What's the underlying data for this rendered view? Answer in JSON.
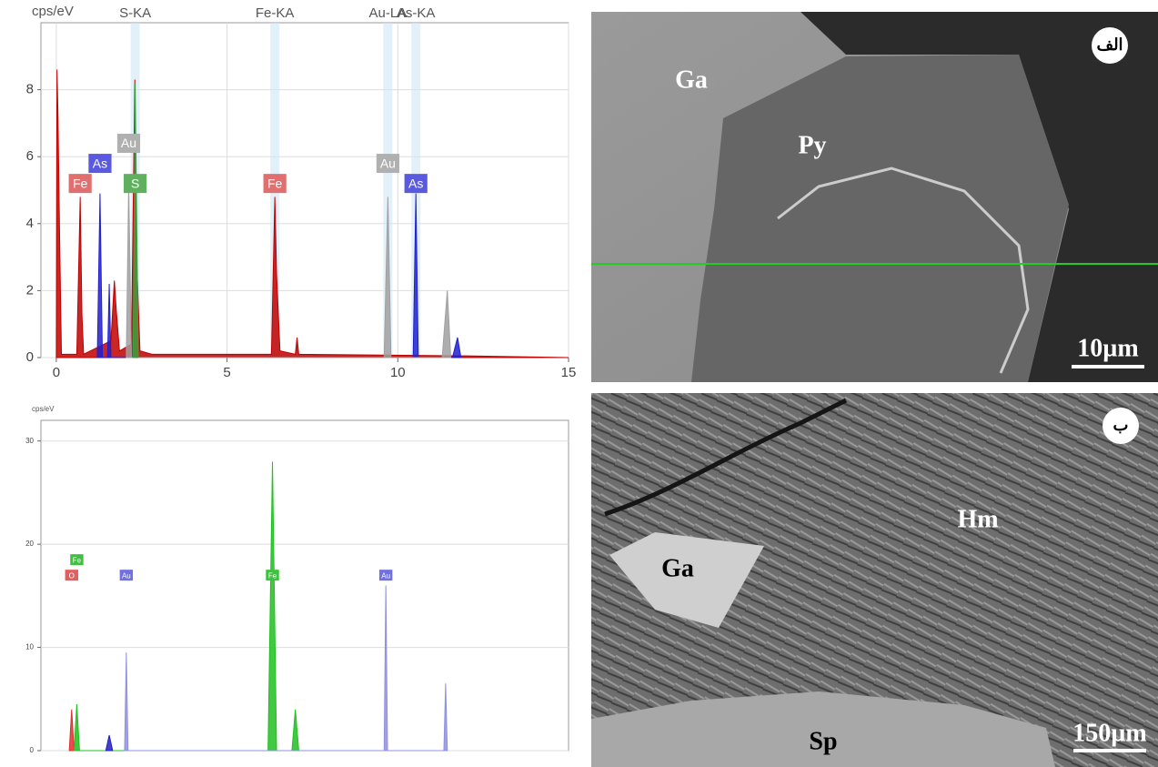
{
  "chart_data": [
    {
      "type": "spectrum",
      "ylabel": "cps/eV",
      "xlim": [
        -0.45,
        15
      ],
      "ylim": [
        0,
        10
      ],
      "xticks": [
        0,
        5,
        10,
        15
      ],
      "yticks": [
        0,
        2,
        4,
        6,
        8
      ],
      "grid": true,
      "series": [
        {
          "color": "#c00000",
          "x": [
            0,
            0.02,
            0.05,
            0.1,
            0.15,
            0.6,
            0.7,
            0.75,
            0.8,
            1.6,
            1.7,
            1.75,
            1.85,
            2.2,
            2.3,
            2.35,
            2.45,
            2.8,
            6.3,
            6.4,
            6.45,
            6.55,
            7.0,
            7.05,
            7.1,
            12,
            15
          ],
          "values": [
            0,
            8.6,
            7.2,
            3.4,
            0.1,
            0.1,
            4.8,
            1.3,
            0.1,
            0.5,
            2.3,
            1.5,
            0.2,
            0.4,
            8.3,
            3.0,
            0.2,
            0.1,
            0.1,
            4.8,
            2.5,
            0.2,
            0.1,
            0.6,
            0.1,
            0.05,
            0
          ]
        },
        {
          "color": "#2020d0",
          "x": [
            1.2,
            1.28,
            1.35,
            1.5,
            1.55,
            1.6,
            10.45,
            10.53,
            10.6,
            11.6,
            11.75,
            11.85
          ],
          "values": [
            0,
            4.9,
            0,
            0,
            2.2,
            0,
            0,
            4.9,
            0,
            0,
            0.6,
            0
          ]
        },
        {
          "color": "#a0a0a0",
          "x": [
            2.05,
            2.12,
            2.2,
            9.6,
            9.71,
            9.8,
            11.3,
            11.45,
            11.55
          ],
          "values": [
            0,
            5.2,
            0,
            0,
            4.8,
            0,
            0,
            2.0,
            0
          ]
        },
        {
          "color": "#3ca03c",
          "x": [
            2.25,
            2.31,
            2.4
          ],
          "values": [
            0,
            8.2,
            0
          ]
        }
      ],
      "peak_labels": [
        {
          "text": "S-KA",
          "x": 2.31
        },
        {
          "text": "Fe-KA",
          "x": 6.4
        },
        {
          "text": "Au-LA",
          "x": 9.71
        },
        {
          "text": "As-KA",
          "x": 10.53
        }
      ],
      "tags": [
        {
          "text": "Fe",
          "x": 0.7,
          "y": 5.2,
          "color": "#e07070"
        },
        {
          "text": "As",
          "x": 1.28,
          "y": 5.8,
          "color": "#5a5ae0"
        },
        {
          "text": "Au",
          "x": 2.12,
          "y": 6.4,
          "color": "#b0b0b0"
        },
        {
          "text": "S",
          "x": 2.31,
          "y": 5.2,
          "color": "#60b060"
        },
        {
          "text": "Fe",
          "x": 6.4,
          "y": 5.2,
          "color": "#e07070"
        },
        {
          "text": "Au",
          "x": 9.71,
          "y": 5.8,
          "color": "#b0b0b0"
        },
        {
          "text": "As",
          "x": 10.53,
          "y": 5.2,
          "color": "#5a5ae0"
        }
      ]
    },
    {
      "type": "spectrum",
      "ylabel": "cps/eV",
      "xlim": [
        -0.45,
        15
      ],
      "ylim": [
        0,
        32
      ],
      "yticks": [
        0,
        10,
        20,
        30
      ],
      "grid": true,
      "series": [
        {
          "color": "#e03030",
          "x": [
            0.38,
            0.45,
            0.52
          ],
          "values": [
            0,
            4,
            0
          ]
        },
        {
          "color": "#20c020",
          "x": [
            0.52,
            0.6,
            0.68,
            6.2,
            6.33,
            6.45,
            6.9,
            7.0,
            7.1
          ],
          "values": [
            0,
            4.5,
            0,
            0,
            28,
            0,
            0,
            4,
            0
          ]
        },
        {
          "color": "#2020c0",
          "x": [
            1.45,
            1.55,
            1.65
          ],
          "values": [
            0,
            1.5,
            0
          ]
        },
        {
          "color": "#9090e0",
          "x": [
            2.0,
            2.05,
            2.1,
            9.6,
            9.65,
            9.7,
            11.35,
            11.4,
            11.45
          ],
          "values": [
            0,
            9.5,
            0,
            0,
            16,
            0,
            0,
            6.5,
            0
          ]
        }
      ],
      "tags": [
        {
          "text": "O",
          "x": 0.45,
          "y": 17,
          "color": "#e06060"
        },
        {
          "text": "Fe",
          "x": 0.6,
          "y": 18.5,
          "color": "#40c040"
        },
        {
          "text": "Au",
          "x": 2.05,
          "y": 17,
          "color": "#7070e0"
        },
        {
          "text": "Fe",
          "x": 6.33,
          "y": 17,
          "color": "#40c040"
        },
        {
          "text": "Au",
          "x": 9.65,
          "y": 17,
          "color": "#7070e0"
        }
      ]
    }
  ],
  "images": [
    {
      "panel": "الف",
      "labels": [
        "Ga",
        "Py"
      ],
      "scale": "10µm"
    },
    {
      "panel": "ب",
      "labels": [
        "Hm",
        "Ga",
        "Sp"
      ],
      "scale": "150µm"
    }
  ]
}
